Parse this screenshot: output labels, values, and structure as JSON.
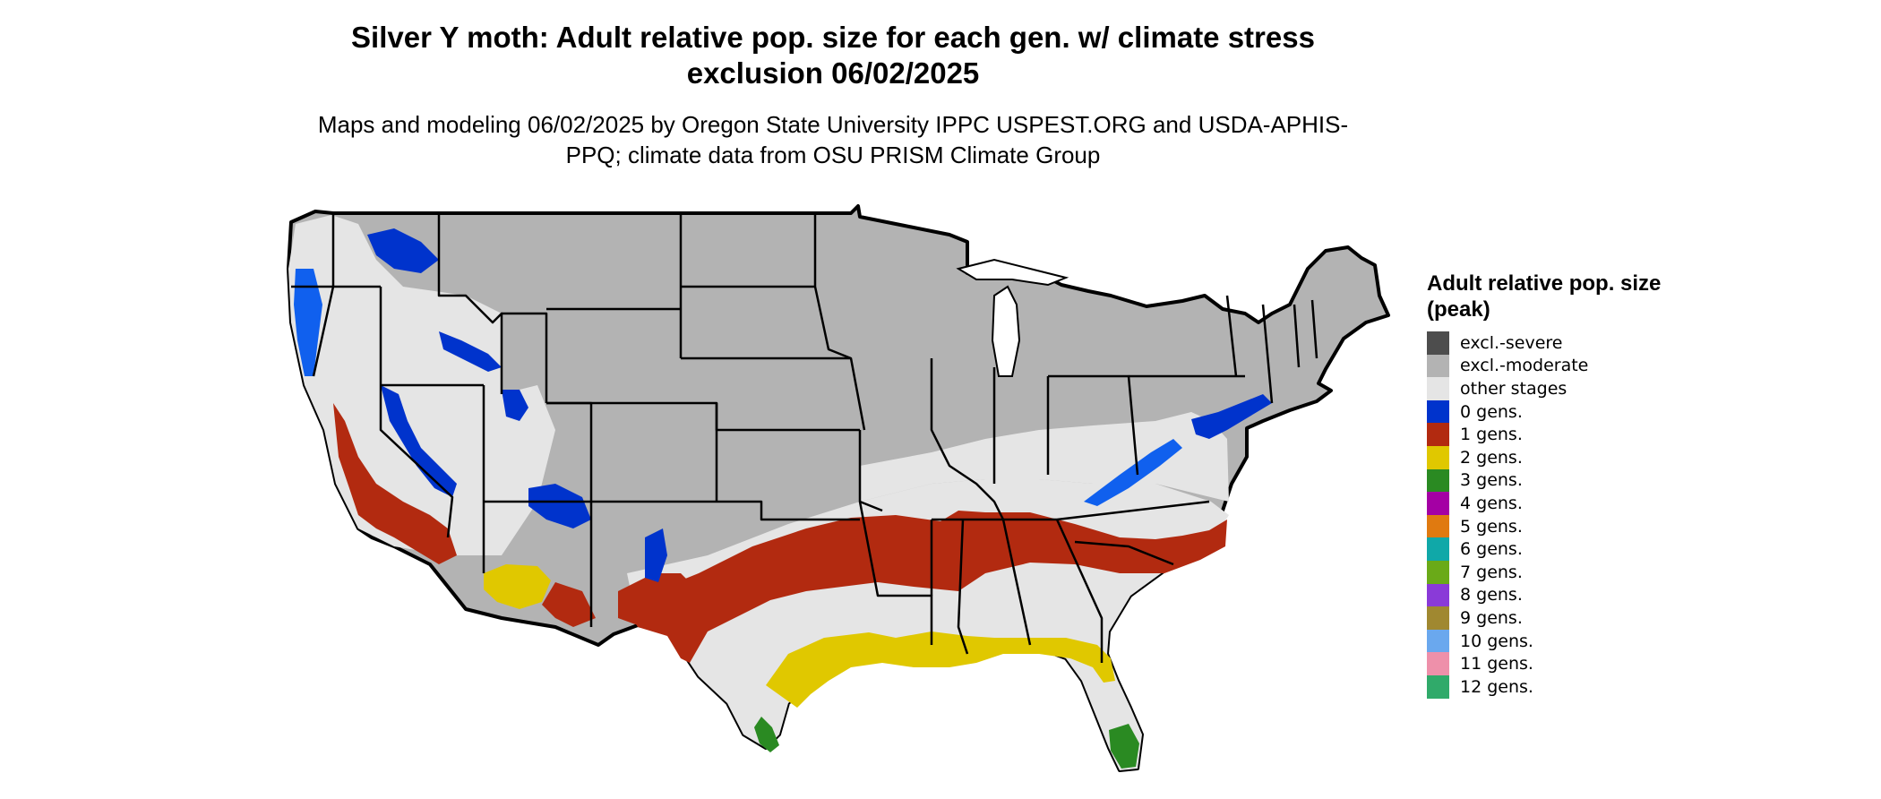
{
  "title": "Silver Y moth: Adult relative pop. size for each gen. w/ climate stress exclusion 06/02/2025",
  "subtitle": "Maps and modeling 06/02/2025 by Oregon State University IPPC USPEST.ORG and USDA-APHIS-PPQ; climate data from OSU PRISM Climate Group",
  "legend": {
    "title": "Adult relative pop. size (peak)",
    "items": [
      {
        "label": "excl.-severe",
        "color": "#4d4d4d"
      },
      {
        "label": "excl.-moderate",
        "color": "#b3b3b3"
      },
      {
        "label": "other stages",
        "color": "#e5e5e5"
      },
      {
        "label": "0 gens.",
        "color": "#0033cc"
      },
      {
        "label": "1 gens.",
        "color": "#b22a10"
      },
      {
        "label": "2 gens.",
        "color": "#e0c800"
      },
      {
        "label": "3 gens.",
        "color": "#2a8a22"
      },
      {
        "label": "4 gens.",
        "color": "#a400a4"
      },
      {
        "label": "5 gens.",
        "color": "#e07a10"
      },
      {
        "label": "6 gens.",
        "color": "#10a8a8"
      },
      {
        "label": "7 gens.",
        "color": "#6aaa18"
      },
      {
        "label": "8 gens.",
        "color": "#8a3ad8"
      },
      {
        "label": "9 gens.",
        "color": "#a08830"
      },
      {
        "label": "10 gens.",
        "color": "#6aa8ee"
      },
      {
        "label": "11 gens.",
        "color": "#ee90aa"
      },
      {
        "label": "12 gens.",
        "color": "#30aa6a"
      }
    ]
  }
}
